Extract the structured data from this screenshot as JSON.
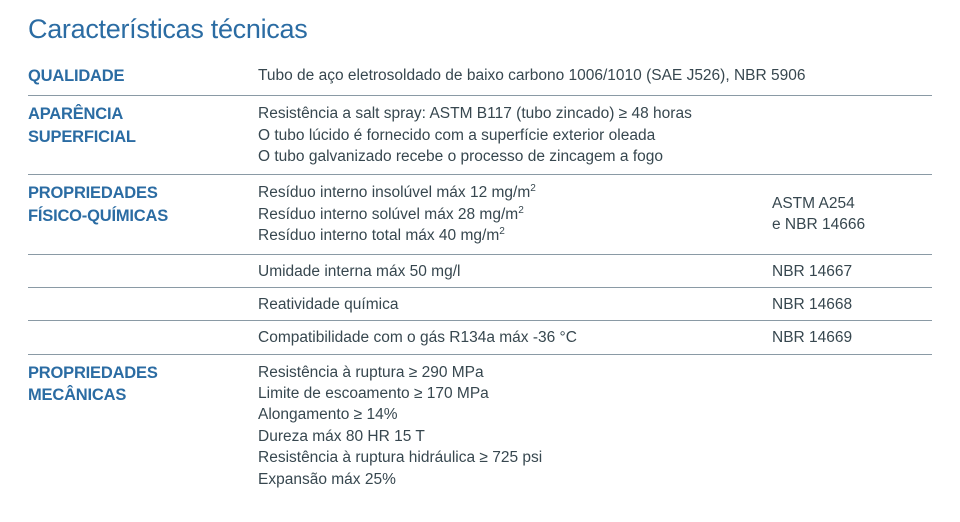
{
  "title": "Características técnicas",
  "rows": {
    "qualidade": {
      "label": "QUALIDADE",
      "text": "Tubo de aço eletrosoldado de baixo carbono 1006/1010 (SAE J526), NBR 5906"
    },
    "aparencia": {
      "label1": "APARÊNCIA",
      "label2": "SUPERFICIAL",
      "line1": "Resistência a salt spray: ASTM B117 (tubo zincado) ≥ 48 horas",
      "line2": "O tubo lúcido é fornecido com a superfície exterior oleada",
      "line3": "O tubo galvanizado recebe o processo de zincagem a fogo"
    },
    "fisico": {
      "label1": "PROPRIEDADES",
      "label2": "FÍSICO-QUÍMICAS",
      "group1": {
        "line1a": "Resíduo interno insolúvel máx 12 mg/m",
        "line2a": "Resíduo interno solúvel máx 28 mg/m",
        "line3a": "Resíduo interno total máx 40 mg/m",
        "sup": "2",
        "right1": "ASTM A254",
        "right2": "e NBR 14666"
      },
      "umidade": {
        "text": "Umidade interna máx 50 mg/l",
        "right": "NBR 14667"
      },
      "reatividade": {
        "text": "Reatividade química",
        "right": "NBR 14668"
      },
      "compat": {
        "text": "Compatibilidade com o gás R134a máx -36 °C",
        "right": "NBR 14669"
      }
    },
    "mecanicas": {
      "label1": "PROPRIEDADES",
      "label2": "MECÂNICAS",
      "line1": "Resistência à ruptura ≥ 290 MPa",
      "line2": "Limite de escoamento ≥ 170 MPa",
      "line3": "Alongamento ≥ 14%",
      "line4": "Dureza máx 80 HR 15 T",
      "line5": "Resistência à ruptura hidráulica ≥ 725 psi",
      "line6": "Expansão máx 25%"
    }
  }
}
